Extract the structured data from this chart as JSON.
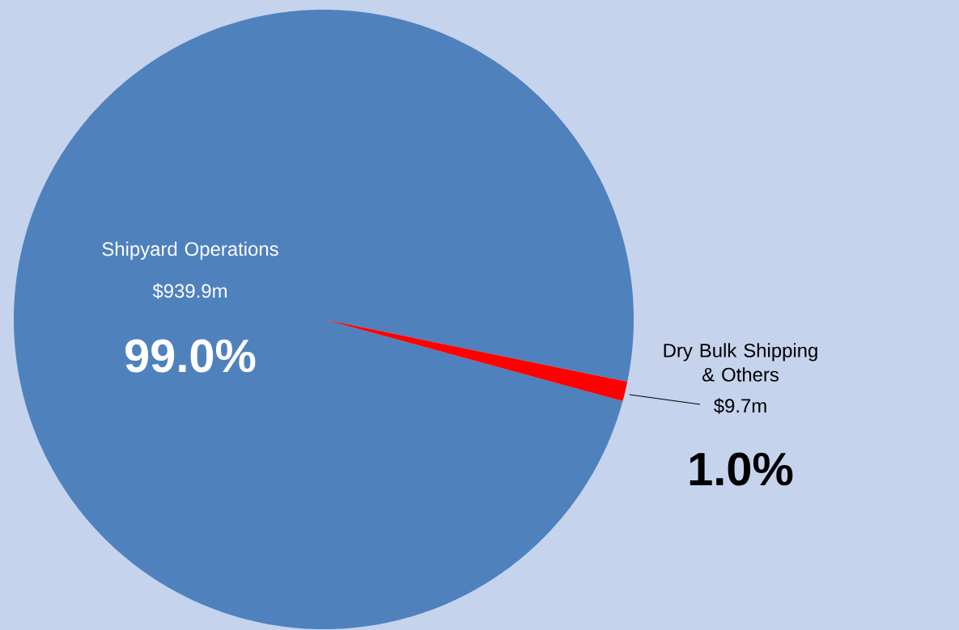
{
  "chart_data": {
    "type": "pie",
    "categories": [
      "Shipyard Operations",
      "Dry Bulk Shipping & Others"
    ],
    "values": [
      939.9,
      9.7
    ],
    "colors": [
      "#4f81bd",
      "#ff0000"
    ],
    "value_labels": [
      "$939.9m",
      "$9.7m"
    ],
    "annotations": [
      "99.0%",
      "1.0%"
    ]
  }
}
